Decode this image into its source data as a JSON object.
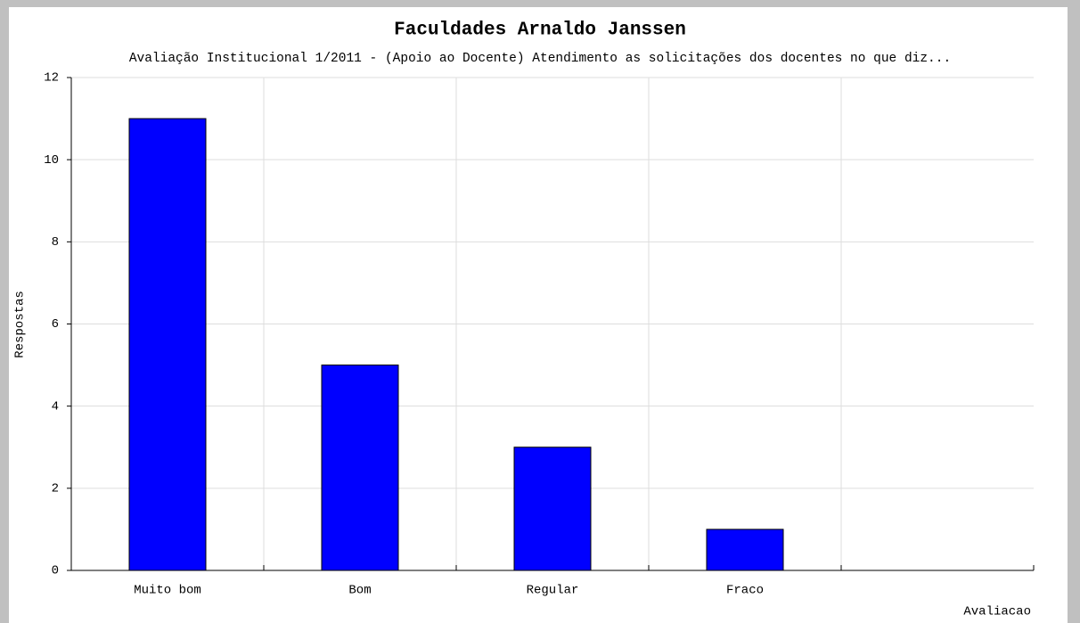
{
  "chart_data": {
    "type": "bar",
    "title": "Faculdades Arnaldo Janssen",
    "subtitle": "Avaliação Institucional 1/2011 - (Apoio ao Docente) Atendimento as solicitações dos docentes no que diz...",
    "x_label": "Avaliacao",
    "y_label": "Respostas",
    "categories": [
      "Muito bom",
      "Bom",
      "Regular",
      "Fraco",
      null
    ],
    "values": [
      11,
      5,
      3,
      1,
      null
    ],
    "color": "#0000ff",
    "ylim": [
      0,
      12
    ],
    "yticks": [
      0,
      2,
      4,
      6,
      8,
      10,
      12
    ],
    "grid": true
  }
}
